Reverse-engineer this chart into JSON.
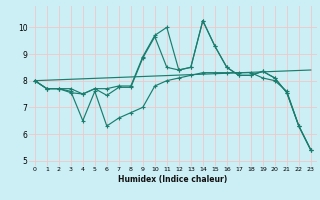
{
  "xlabel": "Humidex (Indice chaleur)",
  "bg_color": "#cceef5",
  "grid_color": "#f0c8c8",
  "line_color": "#1a7d6e",
  "xlim": [
    -0.5,
    23.5
  ],
  "ylim": [
    4.8,
    10.8
  ],
  "yticks": [
    5,
    6,
    7,
    8,
    9,
    10
  ],
  "xticks": [
    0,
    1,
    2,
    3,
    4,
    5,
    6,
    7,
    8,
    9,
    10,
    11,
    12,
    13,
    14,
    15,
    16,
    17,
    18,
    19,
    20,
    21,
    22,
    23
  ],
  "series": {
    "line1_x": [
      0,
      1,
      2,
      3,
      4,
      5,
      6,
      7,
      8,
      9,
      10,
      11,
      12,
      13,
      14,
      15,
      16,
      17,
      18,
      19,
      20,
      21,
      22,
      23
    ],
    "line1_y": [
      8.0,
      7.7,
      7.7,
      7.7,
      7.5,
      7.7,
      7.7,
      7.8,
      7.8,
      8.9,
      9.7,
      10.0,
      8.4,
      8.5,
      10.25,
      9.3,
      8.5,
      8.2,
      8.2,
      8.35,
      8.1,
      7.55,
      6.3,
      5.4
    ],
    "line2_x": [
      0,
      1,
      2,
      3,
      4,
      5,
      6,
      7,
      8,
      9,
      10,
      11,
      12,
      13,
      14,
      15,
      16,
      17,
      18,
      19,
      20,
      21,
      22,
      23
    ],
    "line2_y": [
      8.0,
      7.7,
      7.7,
      7.6,
      6.5,
      7.6,
      6.3,
      6.6,
      6.8,
      7.0,
      7.8,
      8.0,
      8.1,
      8.2,
      8.3,
      8.3,
      8.3,
      8.3,
      8.3,
      8.1,
      8.0,
      7.6,
      6.3,
      5.4
    ],
    "line3_x": [
      0,
      1,
      2,
      3,
      4,
      5,
      6,
      7,
      8,
      9,
      10,
      11,
      12,
      13,
      14,
      15,
      16,
      17,
      18,
      19,
      20,
      21,
      22,
      23
    ],
    "line3_y": [
      8.0,
      7.7,
      7.7,
      7.55,
      7.5,
      7.7,
      7.45,
      7.75,
      7.75,
      8.85,
      9.65,
      8.5,
      8.4,
      8.5,
      10.25,
      9.3,
      8.5,
      8.2,
      8.2,
      8.35,
      8.1,
      7.55,
      6.3,
      5.4
    ],
    "line4_x": [
      0,
      23
    ],
    "line4_y": [
      8.0,
      8.4
    ]
  }
}
